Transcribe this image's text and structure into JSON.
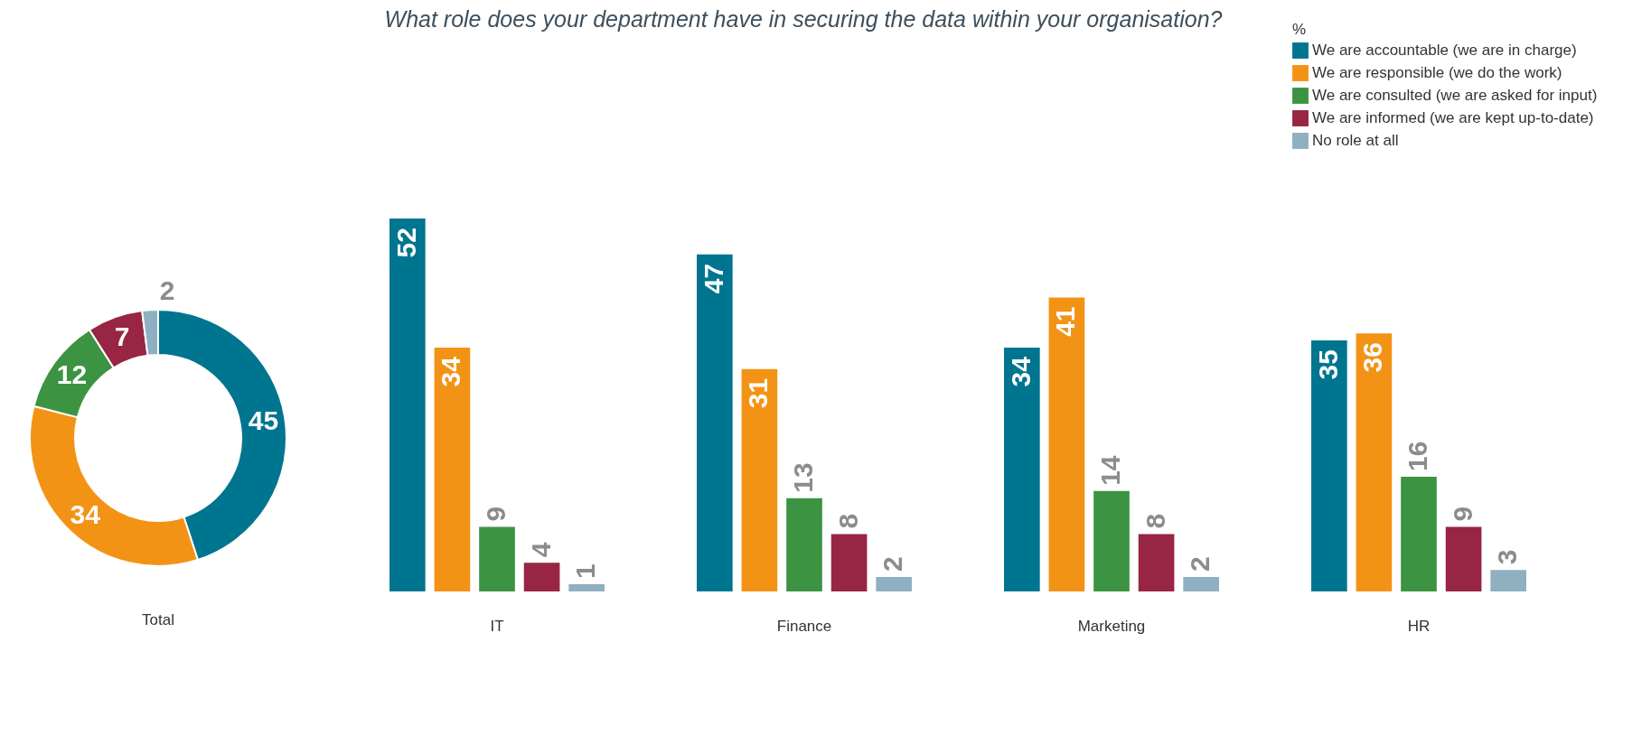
{
  "chart_data": [
    {
      "type": "donut",
      "xlabel": "Total",
      "categories": [
        "We are accountable (we are in charge)",
        "We are responsible (we do the work)",
        "We are consulted (we are asked for input)",
        "We are informed (we are kept up-to-date)",
        "No role at all"
      ],
      "values": [
        45,
        34,
        12,
        7,
        2
      ],
      "colors": [
        "#00758f",
        "#f39315",
        "#3c9442",
        "#972543",
        "#8fb0c1"
      ],
      "data_labels": true,
      "legend": "top right",
      "legend_title": "%"
    },
    {
      "type": "bar",
      "title": "What role does your department have in securing the data within your organisation?",
      "categories": [
        "IT",
        "Finance",
        "Marketing",
        "HR"
      ],
      "data_labels": true,
      "series": [
        {
          "color": "#00758f",
          "values": [
            52,
            47,
            34,
            35
          ]
        },
        {
          "color": "#f39315",
          "values": [
            34,
            31,
            41,
            36
          ]
        },
        {
          "color": "#3c9442",
          "values": [
            9,
            13,
            14,
            16
          ]
        },
        {
          "color": "#972543",
          "values": [
            4,
            8,
            8,
            9
          ]
        },
        {
          "color": "#8fb0c1",
          "values": [
            1,
            2,
            2,
            3
          ]
        }
      ]
    }
  ]
}
